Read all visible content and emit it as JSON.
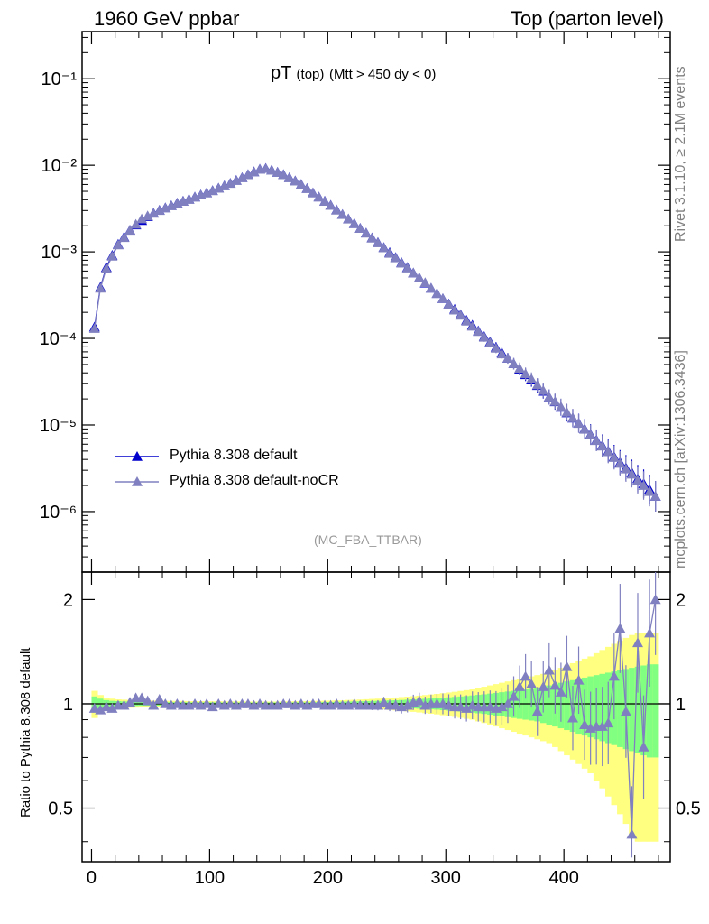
{
  "header": {
    "left": "1960 GeV ppbar",
    "right": "Top (parton level)"
  },
  "plot_title": {
    "main": "pT",
    "sub": "(top)",
    "cuts": "(Mtt > 450 dy < 0)"
  },
  "analysis_tag": "(MC_FBA_TTBAR)",
  "side_text": {
    "rivet": "Rivet 3.1.10, ≥ 2.1M events",
    "site": "mcplots.cern.ch [arXiv:1306.3436]"
  },
  "colors": {
    "default": "#0000cc",
    "nocr": "#8080c0",
    "band_yellow": "#ffff80",
    "band_green": "#80ff80"
  },
  "chart_data": [
    {
      "type": "line",
      "panel": "main",
      "yscale": "log",
      "xlim": [
        -8,
        490
      ],
      "ylim": [
        2e-07,
        0.35
      ],
      "y_tick_labels": [
        "10⁻¹",
        "10⁻²",
        "10⁻³",
        "10⁻⁴",
        "10⁻⁵",
        "10⁻⁶"
      ],
      "legend_position": "lower-left",
      "x": [
        2.5,
        7.5,
        12.5,
        17.5,
        22.5,
        27.5,
        32.5,
        37.5,
        42.5,
        47.5,
        52.5,
        57.5,
        62.5,
        67.5,
        72.5,
        77.5,
        82.5,
        87.5,
        92.5,
        97.5,
        102.5,
        107.5,
        112.5,
        117.5,
        122.5,
        127.5,
        132.5,
        137.5,
        142.5,
        147.5,
        152.5,
        157.5,
        162.5,
        167.5,
        172.5,
        177.5,
        182.5,
        187.5,
        192.5,
        197.5,
        202.5,
        207.5,
        212.5,
        217.5,
        222.5,
        227.5,
        232.5,
        237.5,
        242.5,
        247.5,
        252.5,
        257.5,
        262.5,
        267.5,
        272.5,
        277.5,
        282.5,
        287.5,
        292.5,
        297.5,
        302.5,
        307.5,
        312.5,
        317.5,
        322.5,
        327.5,
        332.5,
        337.5,
        342.5,
        347.5,
        352.5,
        357.5,
        362.5,
        367.5,
        372.5,
        377.5,
        382.5,
        387.5,
        392.5,
        397.5,
        402.5,
        407.5,
        412.5,
        417.5,
        422.5,
        427.5,
        432.5,
        437.5,
        442.5,
        447.5,
        452.5,
        457.5,
        462.5,
        467.5,
        472.5,
        477.5
      ],
      "series": [
        {
          "name": "Pythia 8.308 default",
          "values": [
            0.000135,
            0.00039,
            0.00066,
            0.00091,
            0.00122,
            0.00148,
            0.00178,
            0.00204,
            0.0023,
            0.00255,
            0.0028,
            0.00302,
            0.00322,
            0.00342,
            0.00365,
            0.00385,
            0.00405,
            0.0043,
            0.00455,
            0.0048,
            0.0051,
            0.00545,
            0.0058,
            0.0062,
            0.0067,
            0.0072,
            0.0078,
            0.0084,
            0.009,
            0.0092,
            0.0088,
            0.0083,
            0.0078,
            0.0072,
            0.0066,
            0.006,
            0.0054,
            0.0048,
            0.0043,
            0.00385,
            0.00345,
            0.00305,
            0.0027,
            0.0024,
            0.00212,
            0.00187,
            0.00165,
            0.00145,
            0.00128,
            0.00112,
            0.00098,
            0.00086,
            0.00075,
            0.00066,
            0.00057,
            0.0005,
            0.000435,
            0.00038,
            0.00033,
            0.000288,
            0.00025,
            0.000217,
            0.000188,
            0.000162,
            0.000142,
            0.000122,
            0.000105,
            9.1e-05,
            7.9e-05,
            6.8e-05,
            5.9e-05,
            5.1e-05,
            4.4e-05,
            3.8e-05,
            3.3e-05,
            2.85e-05,
            2.45e-05,
            2.1e-05,
            1.85e-05,
            1.6e-05,
            1.38e-05,
            1.2e-05,
            1.05e-05,
            9e-06,
            7.8e-06,
            6.7e-06,
            5.8e-06,
            5e-06,
            4.3e-06,
            3.7e-06,
            3.2e-06,
            2.8e-06,
            2.4e-06,
            2.1e-06,
            1.8e-06,
            1.5e-06
          ]
        },
        {
          "name": "Pythia 8.308 default-noCR",
          "values": [
            0.00013,
            0.00038,
            0.00064,
            0.00089,
            0.0012,
            0.00146,
            0.00177,
            0.00208,
            0.0024,
            0.0026,
            0.00278,
            0.003,
            0.0032,
            0.0034,
            0.00362,
            0.00383,
            0.00403,
            0.00427,
            0.00452,
            0.00477,
            0.00507,
            0.00542,
            0.00577,
            0.00617,
            0.00666,
            0.00716,
            0.00776,
            0.00836,
            0.00896,
            0.00915,
            0.00876,
            0.00826,
            0.00776,
            0.00716,
            0.00656,
            0.00597,
            0.00537,
            0.00478,
            0.00428,
            0.00383,
            0.00343,
            0.00303,
            0.00269,
            0.00239,
            0.00211,
            0.00186,
            0.00164,
            0.00144,
            0.00127,
            0.00111,
            0.00096,
            0.00085,
            0.00074,
            0.00065,
            0.00057,
            0.0005,
            0.00044,
            0.00038,
            0.00033,
            0.000288,
            0.000248,
            0.000212,
            0.000185,
            0.000158,
            0.000138,
            0.00012,
            0.000103,
            8.9e-05,
            7.7e-05,
            6.6e-05,
            5.9e-05,
            5.1e-05,
            4.5e-05,
            3.9e-05,
            3.4e-05,
            2.9e-05,
            2.5e-05,
            2.1e-05,
            1.87e-05,
            1.62e-05,
            1.4e-05,
            1.21e-05,
            1.04e-05,
            8.9e-06,
            7.7e-06,
            6.6e-06,
            5.7e-06,
            4.9e-06,
            4.2e-06,
            3.6e-06,
            3.1e-06,
            2.7e-06,
            2.3e-06,
            2e-06,
            1.7e-06,
            1.5e-06
          ]
        }
      ]
    },
    {
      "type": "line",
      "panel": "ratio",
      "ylabel": "Ratio to Pythia 8.308 default",
      "yscale": "log",
      "xlim": [
        -8,
        490
      ],
      "ylim": [
        0.35,
        2.4
      ],
      "x_tick_labels": [
        "0",
        "100",
        "200",
        "300",
        "400"
      ],
      "y_tick_labels": [
        "0.5",
        "1",
        "2"
      ],
      "x": [
        2.5,
        7.5,
        12.5,
        17.5,
        22.5,
        27.5,
        32.5,
        37.5,
        42.5,
        47.5,
        52.5,
        57.5,
        62.5,
        67.5,
        72.5,
        77.5,
        82.5,
        87.5,
        92.5,
        97.5,
        102.5,
        107.5,
        112.5,
        117.5,
        122.5,
        127.5,
        132.5,
        137.5,
        142.5,
        147.5,
        152.5,
        157.5,
        162.5,
        167.5,
        172.5,
        177.5,
        182.5,
        187.5,
        192.5,
        197.5,
        202.5,
        207.5,
        212.5,
        217.5,
        222.5,
        227.5,
        232.5,
        237.5,
        242.5,
        247.5,
        252.5,
        257.5,
        262.5,
        267.5,
        272.5,
        277.5,
        282.5,
        287.5,
        292.5,
        297.5,
        302.5,
        307.5,
        312.5,
        317.5,
        322.5,
        327.5,
        332.5,
        337.5,
        342.5,
        347.5,
        352.5,
        357.5,
        362.5,
        367.5,
        372.5,
        377.5,
        382.5,
        387.5,
        392.5,
        397.5,
        402.5,
        407.5,
        412.5,
        417.5,
        422.5,
        427.5,
        432.5,
        437.5,
        442.5,
        447.5,
        452.5,
        457.5,
        462.5,
        467.5,
        472.5,
        477.5
      ],
      "band_halfwidth_yellow": [
        0.09,
        0.06,
        0.04,
        0.035,
        0.03,
        0.028,
        0.026,
        0.025,
        0.024,
        0.023,
        0.022,
        0.021,
        0.02,
        0.02,
        0.019,
        0.019,
        0.018,
        0.018,
        0.018,
        0.017,
        0.017,
        0.017,
        0.016,
        0.016,
        0.016,
        0.016,
        0.015,
        0.015,
        0.015,
        0.015,
        0.015,
        0.015,
        0.016,
        0.016,
        0.017,
        0.017,
        0.018,
        0.019,
        0.02,
        0.021,
        0.022,
        0.023,
        0.024,
        0.026,
        0.027,
        0.029,
        0.031,
        0.033,
        0.035,
        0.037,
        0.04,
        0.043,
        0.046,
        0.049,
        0.052,
        0.056,
        0.06,
        0.064,
        0.068,
        0.073,
        0.078,
        0.083,
        0.089,
        0.095,
        0.1,
        0.11,
        0.12,
        0.13,
        0.14,
        0.15,
        0.16,
        0.17,
        0.18,
        0.19,
        0.2,
        0.21,
        0.22,
        0.23,
        0.25,
        0.27,
        0.29,
        0.31,
        0.33,
        0.35,
        0.37,
        0.4,
        0.43,
        0.46,
        0.49,
        0.52,
        0.55,
        0.58,
        0.6,
        0.6,
        0.6,
        0.6
      ],
      "band_halfwidth_green": [
        0.05,
        0.035,
        0.025,
        0.02,
        0.018,
        0.016,
        0.015,
        0.014,
        0.013,
        0.013,
        0.012,
        0.012,
        0.011,
        0.011,
        0.011,
        0.011,
        0.01,
        0.01,
        0.01,
        0.01,
        0.01,
        0.01,
        0.009,
        0.009,
        0.009,
        0.009,
        0.009,
        0.009,
        0.009,
        0.009,
        0.009,
        0.009,
        0.009,
        0.009,
        0.01,
        0.01,
        0.01,
        0.011,
        0.011,
        0.012,
        0.012,
        0.013,
        0.014,
        0.015,
        0.016,
        0.017,
        0.018,
        0.019,
        0.02,
        0.021,
        0.023,
        0.024,
        0.026,
        0.028,
        0.03,
        0.032,
        0.034,
        0.036,
        0.038,
        0.041,
        0.044,
        0.047,
        0.05,
        0.053,
        0.057,
        0.061,
        0.065,
        0.07,
        0.075,
        0.08,
        0.085,
        0.09,
        0.095,
        0.1,
        0.105,
        0.11,
        0.12,
        0.13,
        0.14,
        0.15,
        0.16,
        0.17,
        0.18,
        0.19,
        0.2,
        0.21,
        0.22,
        0.23,
        0.24,
        0.25,
        0.26,
        0.27,
        0.28,
        0.29,
        0.3,
        0.3
      ],
      "series": [
        {
          "name": "Pythia 8.308 default-noCR",
          "values": [
            0.97,
            0.96,
            0.98,
            0.97,
            0.99,
            0.99,
            1.01,
            1.04,
            1.04,
            1.02,
            0.99,
            1.03,
            1.0,
            0.99,
            1.0,
            0.99,
            0.99,
            1.0,
            0.99,
            1.0,
            0.98,
            1.0,
            0.99,
            1.0,
            0.99,
            1.0,
            1.0,
            0.99,
            1.0,
            0.99,
            0.99,
            0.99,
            1.0,
            1.0,
            0.99,
            1.0,
            0.99,
            1.0,
            1.0,
            0.99,
            0.99,
            1.0,
            0.99,
            0.99,
            1.0,
            0.99,
            0.99,
            0.99,
            0.99,
            1.01,
            0.99,
            0.99,
            0.98,
            0.99,
            1.01,
            1.02,
            0.99,
            1.0,
            1.0,
            1.0,
            0.99,
            0.98,
            0.98,
            0.97,
            0.99,
            0.98,
            0.98,
            0.98,
            0.97,
            0.98,
            1.0,
            1.05,
            1.12,
            1.2,
            1.14,
            0.95,
            1.12,
            1.25,
            1.13,
            1.08,
            1.28,
            0.91,
            1.17,
            0.87,
            0.85,
            0.86,
            0.86,
            0.88,
            1.2,
            1.65,
            0.95,
            0.42,
            1.5,
            0.75,
            1.6,
            2.0
          ]
        }
      ]
    }
  ]
}
